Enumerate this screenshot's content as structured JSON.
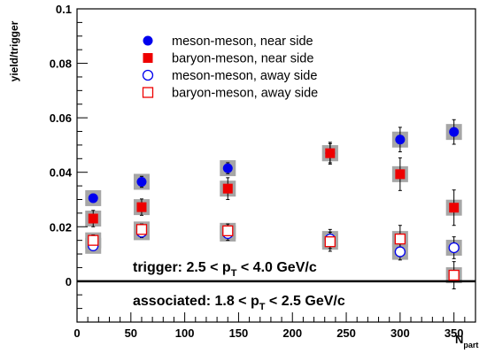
{
  "chart_data": {
    "type": "scatter",
    "title": "",
    "xlabel": "N",
    "xlabel_sub": "part",
    "ylabel": "yield/trigger",
    "xlim": [
      0,
      370
    ],
    "ylim": [
      -0.015,
      0.1
    ],
    "xticks": [
      0,
      50,
      100,
      150,
      200,
      250,
      300,
      350
    ],
    "yticks": [
      0,
      0.02,
      0.04,
      0.06,
      0.08,
      0.1
    ],
    "ytick_labels": [
      "0",
      "0.02",
      "0.04",
      "0.06",
      "0.08",
      "0.1"
    ],
    "reference_line_y": 0,
    "grid": false,
    "legend_position": "top-center",
    "annotations": [
      {
        "prefix": "trigger: 2.5 < p",
        "sub": "T",
        "suffix": " < 4.0 GeV/c"
      },
      {
        "prefix": "associated: 1.8 < p",
        "sub": "T",
        "suffix": " < 2.5 GeV/c"
      }
    ],
    "series": [
      {
        "name": "meson-meson, near side",
        "marker": "filled-circle",
        "color": "#0000ee",
        "x": [
          15,
          60,
          140,
          235,
          300,
          350
        ],
        "y": [
          0.0305,
          0.0365,
          0.0415,
          0.047,
          0.052,
          0.0548
        ],
        "err": [
          0.0015,
          0.002,
          0.002,
          0.0035,
          0.0045,
          0.0045
        ]
      },
      {
        "name": "baryon-meson, near side",
        "marker": "filled-square",
        "color": "#ee0000",
        "x": [
          15,
          60,
          140,
          235,
          300,
          350
        ],
        "y": [
          0.023,
          0.0272,
          0.034,
          0.047,
          0.0393,
          0.027
        ],
        "err": [
          0.003,
          0.003,
          0.004,
          0.004,
          0.006,
          0.0065
        ]
      },
      {
        "name": "meson-meson, away side",
        "marker": "open-circle",
        "color": "#0000ee",
        "x": [
          15,
          60,
          140,
          235,
          300,
          350
        ],
        "y": [
          0.013,
          0.018,
          0.0175,
          0.0155,
          0.0108,
          0.0123
        ],
        "err": [
          0.0015,
          0.002,
          0.0025,
          0.0035,
          0.003,
          0.004
        ]
      },
      {
        "name": "baryon-meson, away side",
        "marker": "open-square",
        "color": "#ee0000",
        "x": [
          15,
          60,
          140,
          235,
          300,
          350
        ],
        "y": [
          0.015,
          0.019,
          0.0185,
          0.0145,
          0.0155,
          0.0022
        ],
        "err": [
          0.002,
          0.002,
          0.0025,
          0.0035,
          0.005,
          0.005
        ]
      }
    ]
  }
}
